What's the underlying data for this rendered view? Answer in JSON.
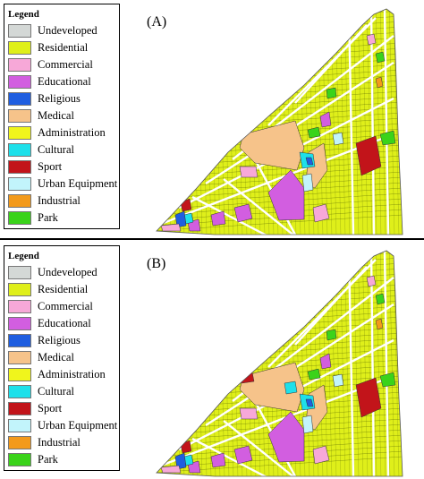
{
  "panels": [
    {
      "label": "(A)"
    },
    {
      "label": "(B)"
    }
  ],
  "legend": {
    "title": "Legend",
    "items": [
      {
        "label": "Undeveloped",
        "color": "#d4d8d6"
      },
      {
        "label": "Residential",
        "color": "#dfef1a"
      },
      {
        "label": "Commercial",
        "color": "#f7a8d8"
      },
      {
        "label": "Educational",
        "color": "#d25ee0"
      },
      {
        "label": "Religious",
        "color": "#1f5ee0"
      },
      {
        "label": "Medical",
        "color": "#f6c38a"
      },
      {
        "label": "Administration",
        "color": "#f0f51c"
      },
      {
        "label": "Cultural",
        "color": "#1ee0ea"
      },
      {
        "label": "Sport",
        "color": "#c2141a"
      },
      {
        "label": "Urban Equipment",
        "color": "#c2f4fb"
      },
      {
        "label": "Industrial",
        "color": "#f39a1b"
      },
      {
        "label": "Park",
        "color": "#3ad31a"
      }
    ]
  }
}
